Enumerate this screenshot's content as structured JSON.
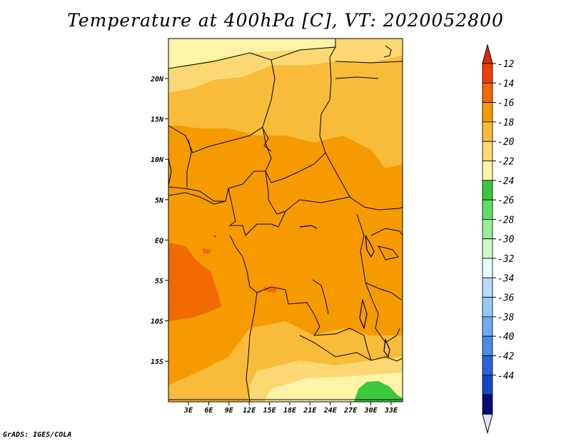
{
  "title": "Temperature at 400hPa [C], VT: 2020052800",
  "credit": "GrADS: IGES/COLA",
  "map": {
    "variable": "Temperature",
    "level": "400hPa",
    "units": "C",
    "valid_time": "2020052800",
    "lat_labels": [
      "20N",
      "15N",
      "10N",
      "5N",
      "EQ",
      "5S",
      "10S",
      "15S"
    ],
    "lon_labels": [
      "3E",
      "6E",
      "9E",
      "12E",
      "15E",
      "18E",
      "21E",
      "24E",
      "27E",
      "30E",
      "33E"
    ]
  },
  "colorbar": {
    "levels": [
      {
        "label": "-12",
        "color": "#f04000"
      },
      {
        "label": "-14",
        "color": "#f06a00"
      },
      {
        "label": "-16",
        "color": "#f59a00"
      },
      {
        "label": "-18",
        "color": "#f9bb3a"
      },
      {
        "label": "-20",
        "color": "#fbd873"
      },
      {
        "label": "-22",
        "color": "#fff3a8"
      },
      {
        "label": "-24",
        "color": "#3cc83c"
      },
      {
        "label": "-26",
        "color": "#64dc64"
      },
      {
        "label": "-28",
        "color": "#96ee96"
      },
      {
        "label": "-30",
        "color": "#cdf8cd"
      },
      {
        "label": "-32",
        "color": "#e8fbfc"
      },
      {
        "label": "-34",
        "color": "#b5dcfa"
      },
      {
        "label": "-36",
        "color": "#96c8f5"
      },
      {
        "label": "-38",
        "color": "#6eaaf0"
      },
      {
        "label": "-40",
        "color": "#4b8ce6"
      },
      {
        "label": "-42",
        "color": "#2a64dc"
      },
      {
        "label": "-44",
        "color": "#1448c8"
      }
    ],
    "top_arrow_color": "#e02800",
    "bottom_arrow_color": "#e0e6ff",
    "box_colors": [
      "#f04000",
      "#f06a00",
      "#f59a00",
      "#f9bb3a",
      "#fbd873",
      "#fff3a8",
      "#3cc83c",
      "#64dc64",
      "#96ee96",
      "#cdf8cd",
      "#e8fbfc",
      "#b5dcfa",
      "#96c8f5",
      "#6eaaf0",
      "#4b8ce6",
      "#2a64dc",
      "#1448c8",
      "#0a0a78"
    ]
  }
}
